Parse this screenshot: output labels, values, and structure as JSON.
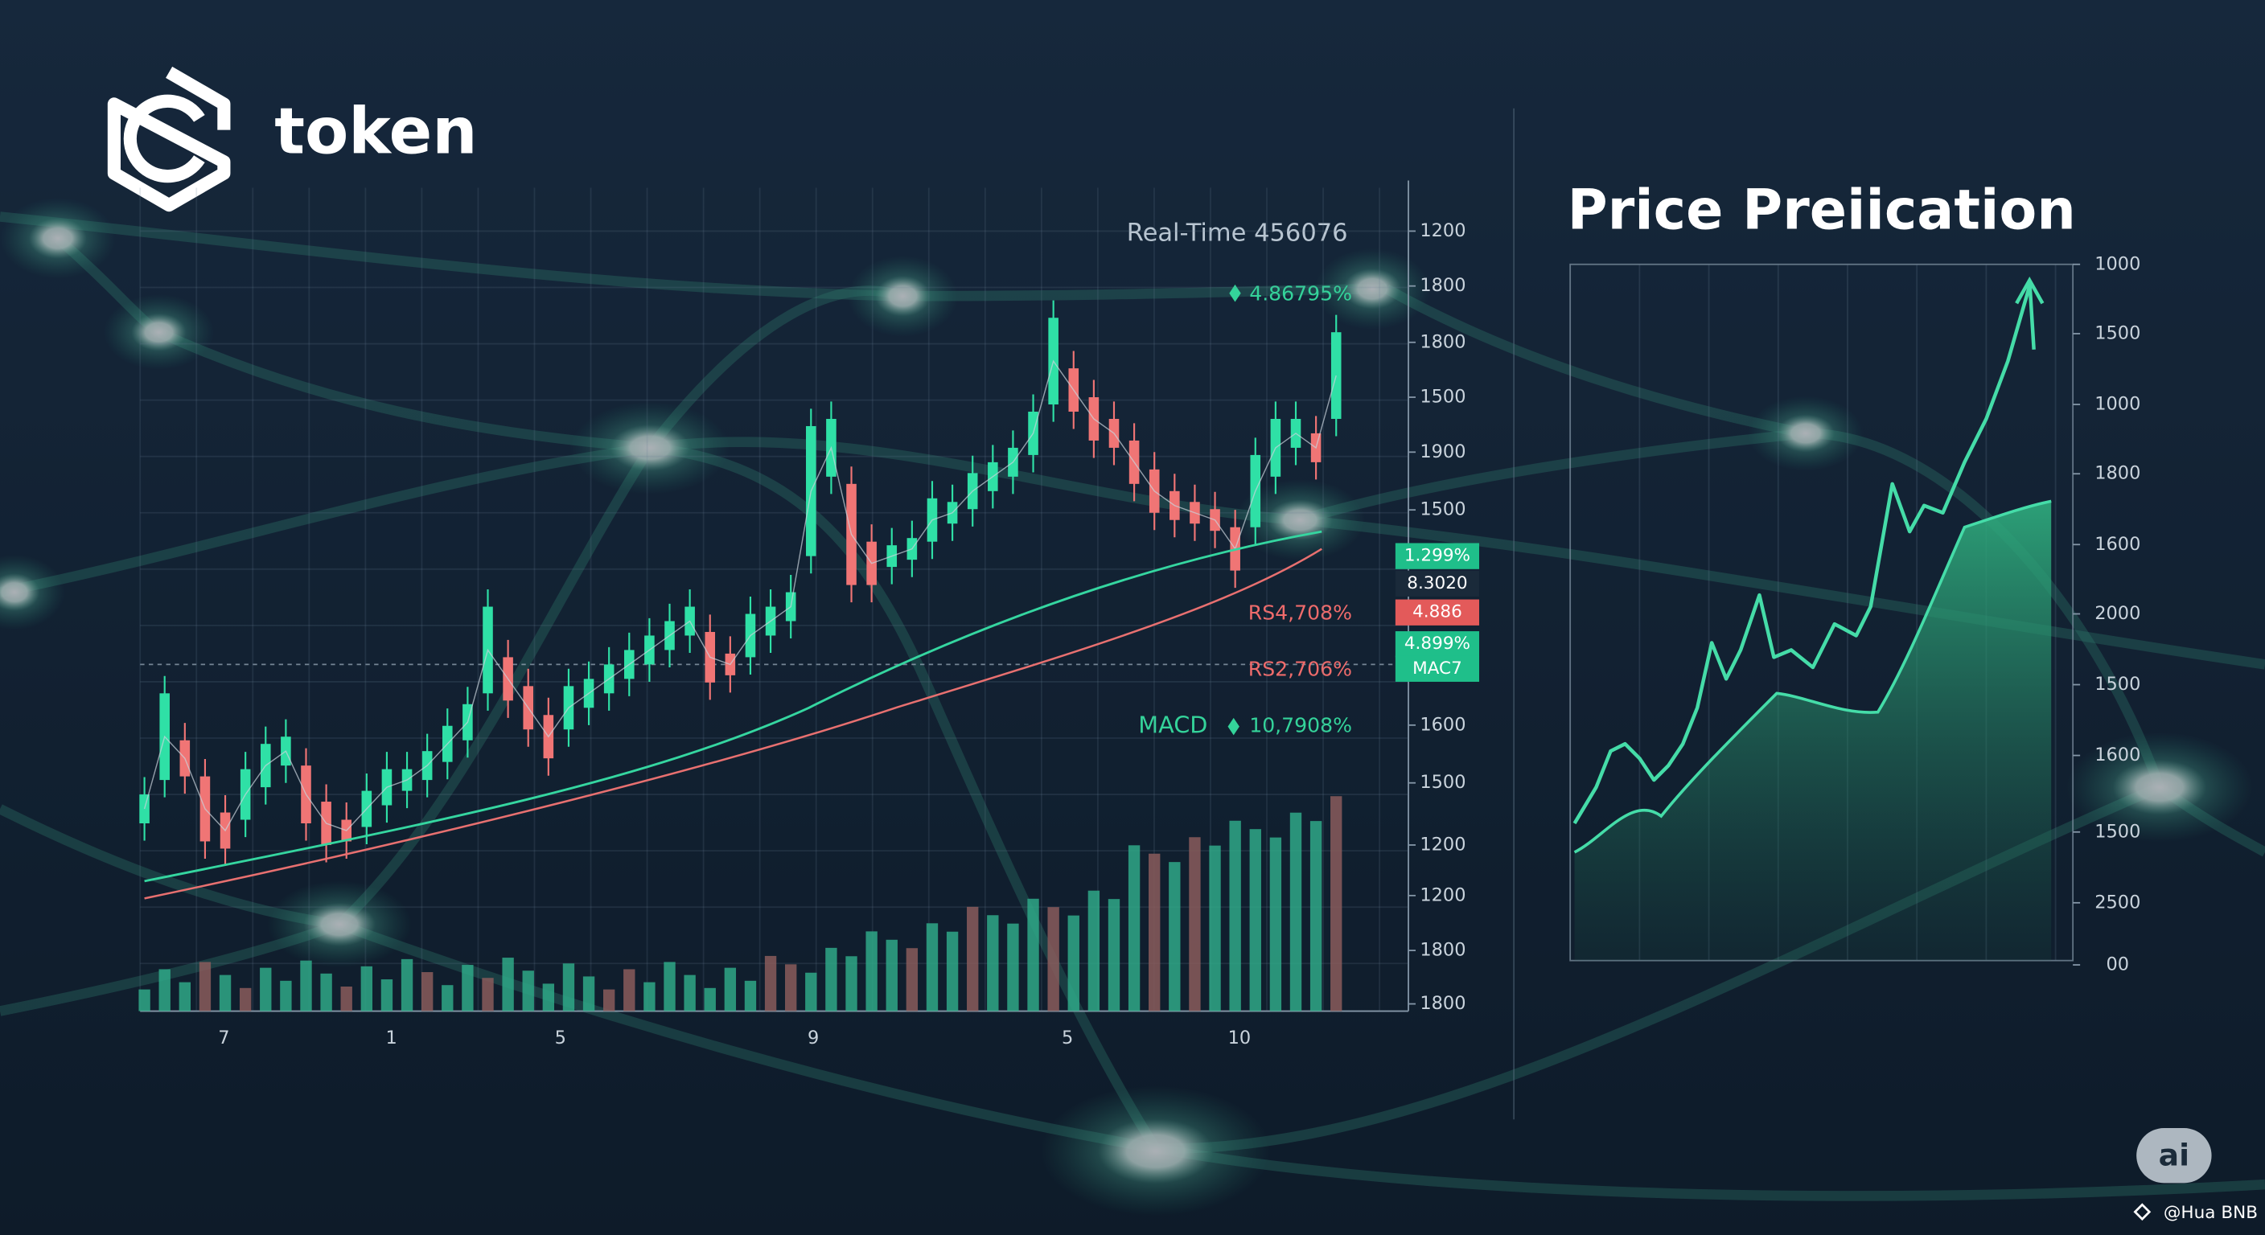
{
  "logo": {
    "text": "token"
  },
  "left_chart": {
    "label": "Real-Time 456076",
    "change": "4.86795%",
    "indicators": [
      "RS4,708%",
      "RS2,706%"
    ],
    "macd": {
      "name": "MACD",
      "value": "10,7908%"
    },
    "y_labels": [
      "1200",
      "1800",
      "1800",
      "1500",
      "1900",
      "1500",
      "1600",
      "1500",
      "1200",
      "1200",
      "1800",
      "1800"
    ],
    "badges": [
      "1.299%",
      "8.3020",
      "4.886",
      "4.899%",
      "MAC7"
    ],
    "x_labels": [
      "7",
      "1",
      "5",
      "9",
      "5",
      "10"
    ]
  },
  "right_chart": {
    "title": "Price Preiication",
    "y_labels": [
      "1000",
      "1500",
      "1000",
      "1800",
      "1600",
      "2000",
      "1500",
      "1600",
      "1500",
      "2500",
      "00"
    ]
  },
  "watermark": {
    "badge": "ai",
    "credit": "@Hua BNB"
  }
}
